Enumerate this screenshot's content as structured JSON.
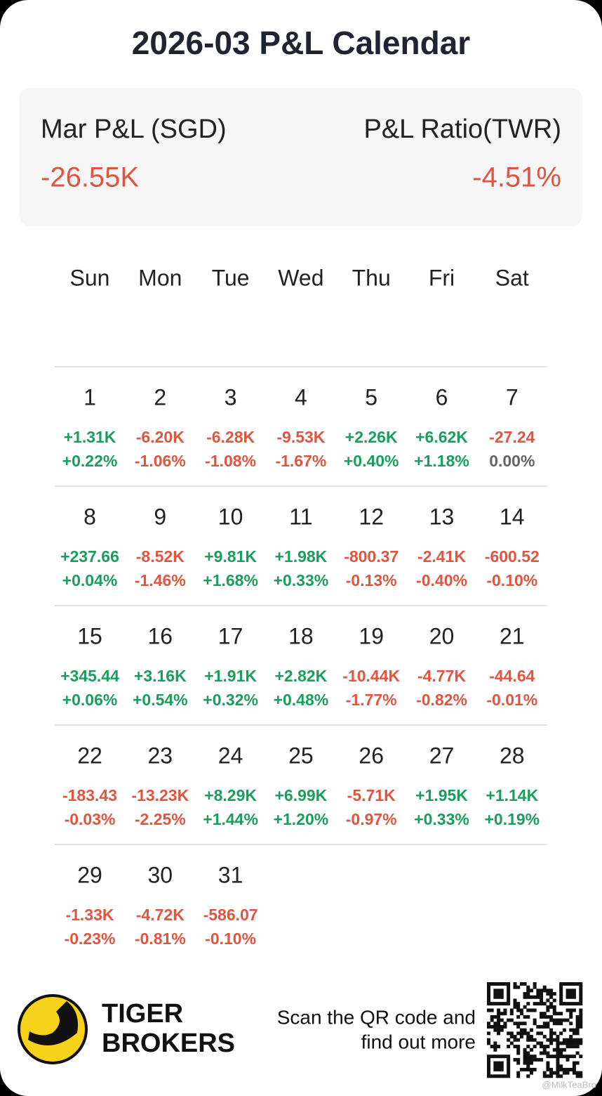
{
  "title": "2026-03 P&L Calendar",
  "summary": {
    "left_label": "Mar P&L (SGD)",
    "left_value": "-26.55K",
    "right_label": "P&L Ratio(TWR)",
    "right_value": "-4.51%"
  },
  "weekdays": [
    "Sun",
    "Mon",
    "Tue",
    "Wed",
    "Thu",
    "Fri",
    "Sat"
  ],
  "weeks": [
    [
      {
        "day": 1,
        "pnl": "+1.31K",
        "ratio": "+0.22%"
      },
      {
        "day": 2,
        "pnl": "-6.20K",
        "ratio": "-1.06%"
      },
      {
        "day": 3,
        "pnl": "-6.28K",
        "ratio": "-1.08%"
      },
      {
        "day": 4,
        "pnl": "-9.53K",
        "ratio": "-1.67%"
      },
      {
        "day": 5,
        "pnl": "+2.26K",
        "ratio": "+0.40%"
      },
      {
        "day": 6,
        "pnl": "+6.62K",
        "ratio": "+1.18%"
      },
      {
        "day": 7,
        "pnl": "-27.24",
        "ratio": "0.00%"
      }
    ],
    [
      {
        "day": 8,
        "pnl": "+237.66",
        "ratio": "+0.04%"
      },
      {
        "day": 9,
        "pnl": "-8.52K",
        "ratio": "-1.46%"
      },
      {
        "day": 10,
        "pnl": "+9.81K",
        "ratio": "+1.68%"
      },
      {
        "day": 11,
        "pnl": "+1.98K",
        "ratio": "+0.33%"
      },
      {
        "day": 12,
        "pnl": "-800.37",
        "ratio": "-0.13%"
      },
      {
        "day": 13,
        "pnl": "-2.41K",
        "ratio": "-0.40%"
      },
      {
        "day": 14,
        "pnl": "-600.52",
        "ratio": "-0.10%"
      }
    ],
    [
      {
        "day": 15,
        "pnl": "+345.44",
        "ratio": "+0.06%"
      },
      {
        "day": 16,
        "pnl": "+3.16K",
        "ratio": "+0.54%"
      },
      {
        "day": 17,
        "pnl": "+1.91K",
        "ratio": "+0.32%"
      },
      {
        "day": 18,
        "pnl": "+2.82K",
        "ratio": "+0.48%"
      },
      {
        "day": 19,
        "pnl": "-10.44K",
        "ratio": "-1.77%"
      },
      {
        "day": 20,
        "pnl": "-4.77K",
        "ratio": "-0.82%"
      },
      {
        "day": 21,
        "pnl": "-44.64",
        "ratio": "-0.01%"
      }
    ],
    [
      {
        "day": 22,
        "pnl": "-183.43",
        "ratio": "-0.03%"
      },
      {
        "day": 23,
        "pnl": "-13.23K",
        "ratio": "-2.25%"
      },
      {
        "day": 24,
        "pnl": "+8.29K",
        "ratio": "+1.44%"
      },
      {
        "day": 25,
        "pnl": "+6.99K",
        "ratio": "+1.20%"
      },
      {
        "day": 26,
        "pnl": "-5.71K",
        "ratio": "-0.97%"
      },
      {
        "day": 27,
        "pnl": "+1.95K",
        "ratio": "+0.33%"
      },
      {
        "day": 28,
        "pnl": "+1.14K",
        "ratio": "+0.19%"
      }
    ],
    [
      {
        "day": 29,
        "pnl": "-1.33K",
        "ratio": "-0.23%"
      },
      {
        "day": 30,
        "pnl": "-4.72K",
        "ratio": "-0.81%"
      },
      {
        "day": 31,
        "pnl": "-586.07",
        "ratio": "-0.10%"
      }
    ]
  ],
  "footer": {
    "brand_line1": "TIGER",
    "brand_line2": "BROKERS",
    "cta_line1": "Scan the QR code and",
    "cta_line2": "find out more",
    "watermark": "@MilkTeaBro"
  }
}
